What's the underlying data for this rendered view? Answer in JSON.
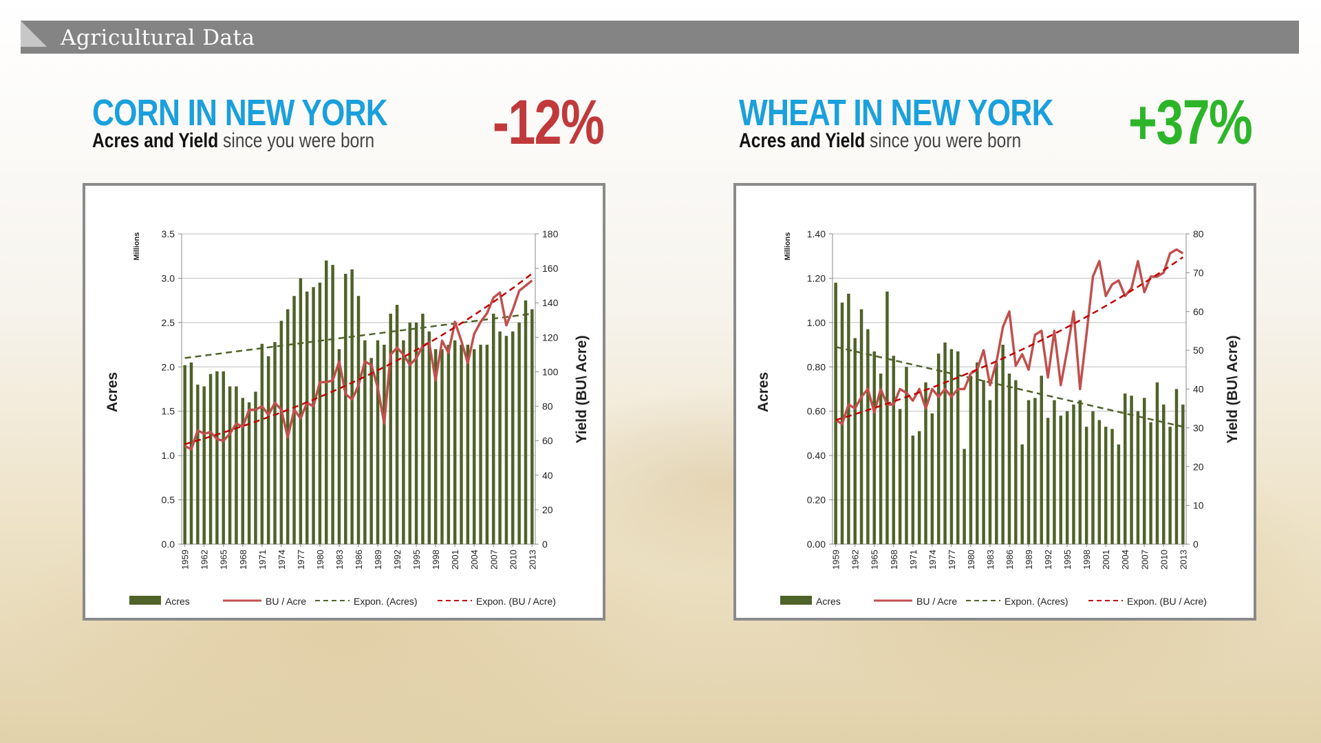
{
  "header": {
    "title": "Agricultural Data"
  },
  "panels": [
    {
      "title": "CORN IN NEW YORK",
      "subtitle_bold": "Acres and Yield",
      "subtitle_light": " since you were born",
      "change": "-12%",
      "change_color": "#c0393b"
    },
    {
      "title": "WHEAT IN NEW YORK",
      "subtitle_bold": "Acres and Yield",
      "subtitle_light": " since you were born",
      "change": "+37%",
      "change_color": "#2db52a"
    }
  ],
  "colors": {
    "bars": "#4f6228",
    "yield_line": "#c0504d",
    "acres_trend": "#4f6228",
    "yield_trend": "#c00000"
  },
  "chart_data": [
    {
      "type": "bar",
      "years": [
        1959,
        1960,
        1961,
        1962,
        1963,
        1964,
        1965,
        1966,
        1967,
        1968,
        1969,
        1970,
        1971,
        1972,
        1973,
        1974,
        1975,
        1976,
        1977,
        1978,
        1979,
        1980,
        1981,
        1982,
        1983,
        1984,
        1985,
        1986,
        1987,
        1988,
        1989,
        1990,
        1991,
        1992,
        1993,
        1994,
        1995,
        1996,
        1997,
        1998,
        1999,
        2000,
        2001,
        2002,
        2003,
        2004,
        2005,
        2006,
        2007,
        2008,
        2009,
        2010,
        2011,
        2012,
        2013
      ],
      "x_tick_labels": [
        "1959",
        "1962",
        "1965",
        "1968",
        "1971",
        "1974",
        "1977",
        "1980",
        "1983",
        "1986",
        "1989",
        "1992",
        "1995",
        "1998",
        "2001",
        "2004",
        "2007",
        "2010",
        "2013"
      ],
      "series": [
        {
          "name": "Acres",
          "type": "bar",
          "axis": "left",
          "values": [
            2.02,
            2.05,
            1.8,
            1.78,
            1.92,
            1.95,
            1.95,
            1.78,
            1.78,
            1.65,
            1.6,
            1.72,
            2.26,
            2.12,
            2.28,
            2.52,
            2.65,
            2.8,
            3.0,
            2.85,
            2.9,
            2.95,
            3.2,
            3.15,
            2.2,
            3.05,
            3.1,
            2.8,
            2.3,
            2.1,
            2.3,
            2.25,
            2.6,
            2.7,
            2.3,
            2.5,
            2.5,
            2.6,
            2.4,
            2.2,
            2.2,
            2.25,
            2.3,
            2.25,
            2.25,
            2.2,
            2.25,
            2.25,
            2.6,
            2.4,
            2.35,
            2.4,
            2.5,
            2.75,
            2.65
          ]
        },
        {
          "name": "BU / Acre",
          "type": "line",
          "axis": "right",
          "values": [
            57,
            55,
            66,
            64,
            65,
            61,
            60,
            64,
            70,
            68,
            78,
            78,
            80,
            75,
            82,
            78,
            62,
            78,
            73,
            82,
            80,
            94,
            94,
            95,
            106,
            87,
            84,
            92,
            106,
            104,
            91,
            70,
            110,
            114,
            110,
            104,
            108,
            115,
            117,
            95,
            118,
            111,
            129,
            118,
            105,
            122,
            129,
            134,
            143,
            146,
            127,
            136,
            147,
            150,
            153
          ]
        },
        {
          "name": "Expon. (Acres)",
          "type": "trend",
          "axis": "left",
          "values": [
            2.1,
            2.6
          ]
        },
        {
          "name": "Expon. (BU / Acre)",
          "type": "trend",
          "axis": "right",
          "values": [
            58,
            157
          ]
        }
      ],
      "left_axis": {
        "label": "Acres",
        "unit_label": "Millions",
        "min": 0,
        "max": 3.5,
        "ticks": [
          "0.0",
          "0.5",
          "1.0",
          "1.5",
          "2.0",
          "2.5",
          "3.0",
          "3.5"
        ]
      },
      "right_axis": {
        "label": "Yield  (BU\\ Acre)",
        "min": 0,
        "max": 180,
        "ticks": [
          "0",
          "20",
          "40",
          "60",
          "80",
          "100",
          "120",
          "140",
          "160",
          "180"
        ]
      },
      "grid": true,
      "legend_position": "bottom"
    },
    {
      "type": "bar",
      "years": [
        1959,
        1960,
        1961,
        1962,
        1963,
        1964,
        1965,
        1966,
        1967,
        1968,
        1969,
        1970,
        1971,
        1972,
        1973,
        1974,
        1975,
        1976,
        1977,
        1978,
        1979,
        1980,
        1981,
        1982,
        1983,
        1984,
        1985,
        1986,
        1987,
        1988,
        1989,
        1990,
        1991,
        1992,
        1993,
        1994,
        1995,
        1996,
        1997,
        1998,
        1999,
        2000,
        2001,
        2002,
        2003,
        2004,
        2005,
        2006,
        2007,
        2008,
        2009,
        2010,
        2011,
        2012,
        2013
      ],
      "x_tick_labels": [
        "1959",
        "1962",
        "1965",
        "1968",
        "1971",
        "1974",
        "1977",
        "1980",
        "1983",
        "1986",
        "1989",
        "1992",
        "1995",
        "1998",
        "2001",
        "2004",
        "2007",
        "2010",
        "2013"
      ],
      "series": [
        {
          "name": "Acres",
          "type": "bar",
          "axis": "left",
          "values": [
            1.18,
            1.09,
            1.13,
            0.93,
            1.06,
            0.97,
            0.87,
            0.77,
            1.14,
            0.85,
            0.61,
            0.8,
            0.49,
            0.51,
            0.73,
            0.59,
            0.86,
            0.91,
            0.88,
            0.87,
            0.43,
            0.76,
            0.82,
            0.74,
            0.65,
            0.82,
            0.9,
            0.77,
            0.74,
            0.45,
            0.65,
            0.66,
            0.76,
            0.57,
            0.65,
            0.58,
            0.6,
            0.63,
            0.65,
            0.53,
            0.6,
            0.56,
            0.53,
            0.52,
            0.45,
            0.68,
            0.67,
            0.6,
            0.66,
            0.55,
            0.73,
            0.63,
            0.53,
            0.7,
            0.63
          ]
        },
        {
          "name": "BU / Acre",
          "type": "line",
          "axis": "right",
          "values": [
            32,
            31,
            36,
            35,
            38,
            40,
            34,
            40,
            36,
            36,
            40,
            39,
            37,
            40,
            35,
            40,
            38,
            40,
            38,
            40,
            40,
            44,
            45,
            50,
            41,
            47,
            56,
            60,
            46,
            49,
            45,
            54,
            55,
            43,
            55,
            41,
            50,
            60,
            40,
            54,
            69,
            73,
            64,
            67,
            68,
            64,
            66,
            73,
            65,
            69,
            69,
            70,
            75,
            76,
            75
          ]
        },
        {
          "name": "Expon. (Acres)",
          "type": "trend",
          "axis": "left",
          "values": [
            0.89,
            0.53
          ]
        },
        {
          "name": "Expon. (BU / Acre)",
          "type": "trend",
          "axis": "right",
          "values": [
            32,
            74
          ]
        }
      ],
      "left_axis": {
        "label": "Acres",
        "unit_label": "Millions",
        "min": 0,
        "max": 1.4,
        "ticks": [
          "0.00",
          "0.20",
          "0.40",
          "0.60",
          "0.80",
          "1.00",
          "1.20",
          "1.40"
        ]
      },
      "right_axis": {
        "label": "Yield  (BU\\ Acre)",
        "min": 0,
        "max": 80,
        "ticks": [
          "0",
          "10",
          "20",
          "30",
          "40",
          "50",
          "60",
          "70",
          "80"
        ]
      },
      "grid": true,
      "legend_position": "bottom"
    }
  ]
}
